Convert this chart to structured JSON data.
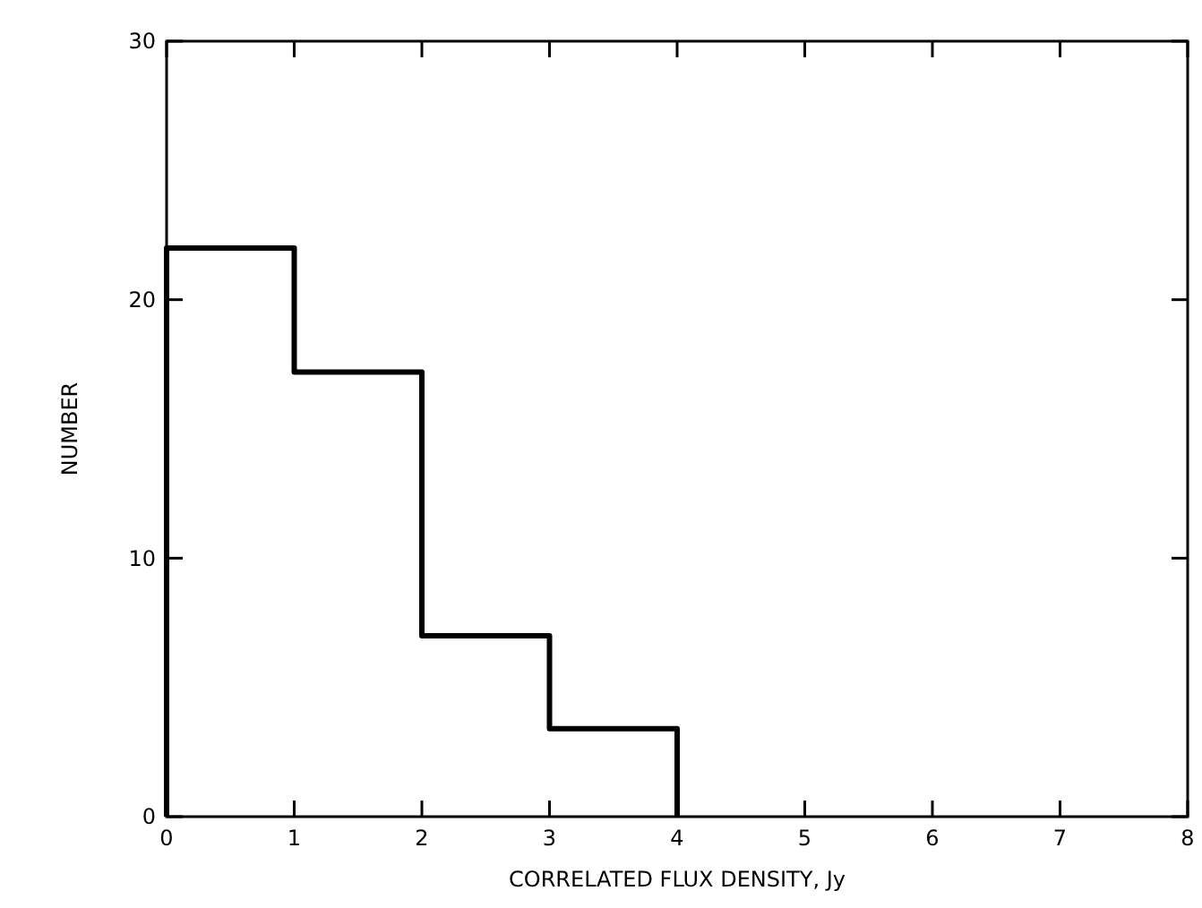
{
  "chart_data": {
    "type": "histogram",
    "xlabel": "CORRELATED FLUX DENSITY, Jy",
    "ylabel": "NUMBER",
    "bins": [
      0,
      1,
      2,
      3,
      4
    ],
    "values": [
      22,
      17.2,
      7,
      3.4
    ],
    "color": "#000000",
    "xlim": [
      0,
      8
    ],
    "xticks": [
      0,
      1,
      2,
      3,
      4,
      5,
      6,
      7,
      8
    ],
    "ylim": [
      0,
      30
    ],
    "yticks": [
      0,
      10,
      20,
      30
    ],
    "grid": false
  }
}
